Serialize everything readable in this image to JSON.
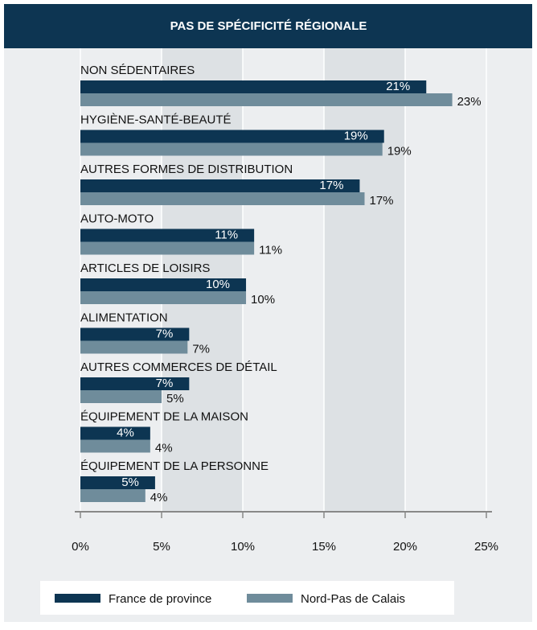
{
  "chart_data": {
    "type": "bar",
    "orientation": "horizontal",
    "title": "PAS DE SPÉCIFICITÉ RÉGIONALE",
    "categories": [
      "NON SÉDENTAIRES",
      "HYGIÈNE-SANTÉ-BEAUTÉ",
      "AUTRES FORMES DE DISTRIBUTION",
      "AUTO-MOTO",
      "ARTICLES DE LOISIRS",
      "ALIMENTATION",
      "AUTRES COMMERCES DE DÉTAIL",
      "ÉQUIPEMENT DE LA MAISON",
      "ÉQUIPEMENT DE LA PERSONNE"
    ],
    "series": [
      {
        "name": "France de province",
        "color": "#0d3552",
        "values": [
          21.3,
          18.7,
          17.2,
          10.7,
          10.2,
          6.7,
          6.7,
          4.3,
          4.6
        ],
        "value_labels": [
          "21%",
          "19%",
          "17%",
          "11%",
          "10%",
          "7%",
          "7%",
          "4%",
          "5%"
        ]
      },
      {
        "name": "Nord-Pas de Calais",
        "color": "#6f8c9b",
        "values": [
          22.9,
          18.6,
          17.5,
          10.7,
          10.2,
          6.6,
          5.0,
          4.3,
          4.0
        ],
        "value_labels": [
          "23%",
          "19%",
          "17%",
          "11%",
          "10%",
          "7%",
          "5%",
          "4%",
          "4%"
        ]
      }
    ],
    "xlim": [
      0,
      25
    ],
    "xticks": [
      {
        "value": 0,
        "label": "0%"
      },
      {
        "value": 5,
        "label": "5%"
      },
      {
        "value": 10,
        "label": "10%"
      },
      {
        "value": 15,
        "label": "15%"
      },
      {
        "value": 20,
        "label": "20%"
      },
      {
        "value": 25,
        "label": "25%"
      }
    ],
    "legend": "bottom"
  }
}
